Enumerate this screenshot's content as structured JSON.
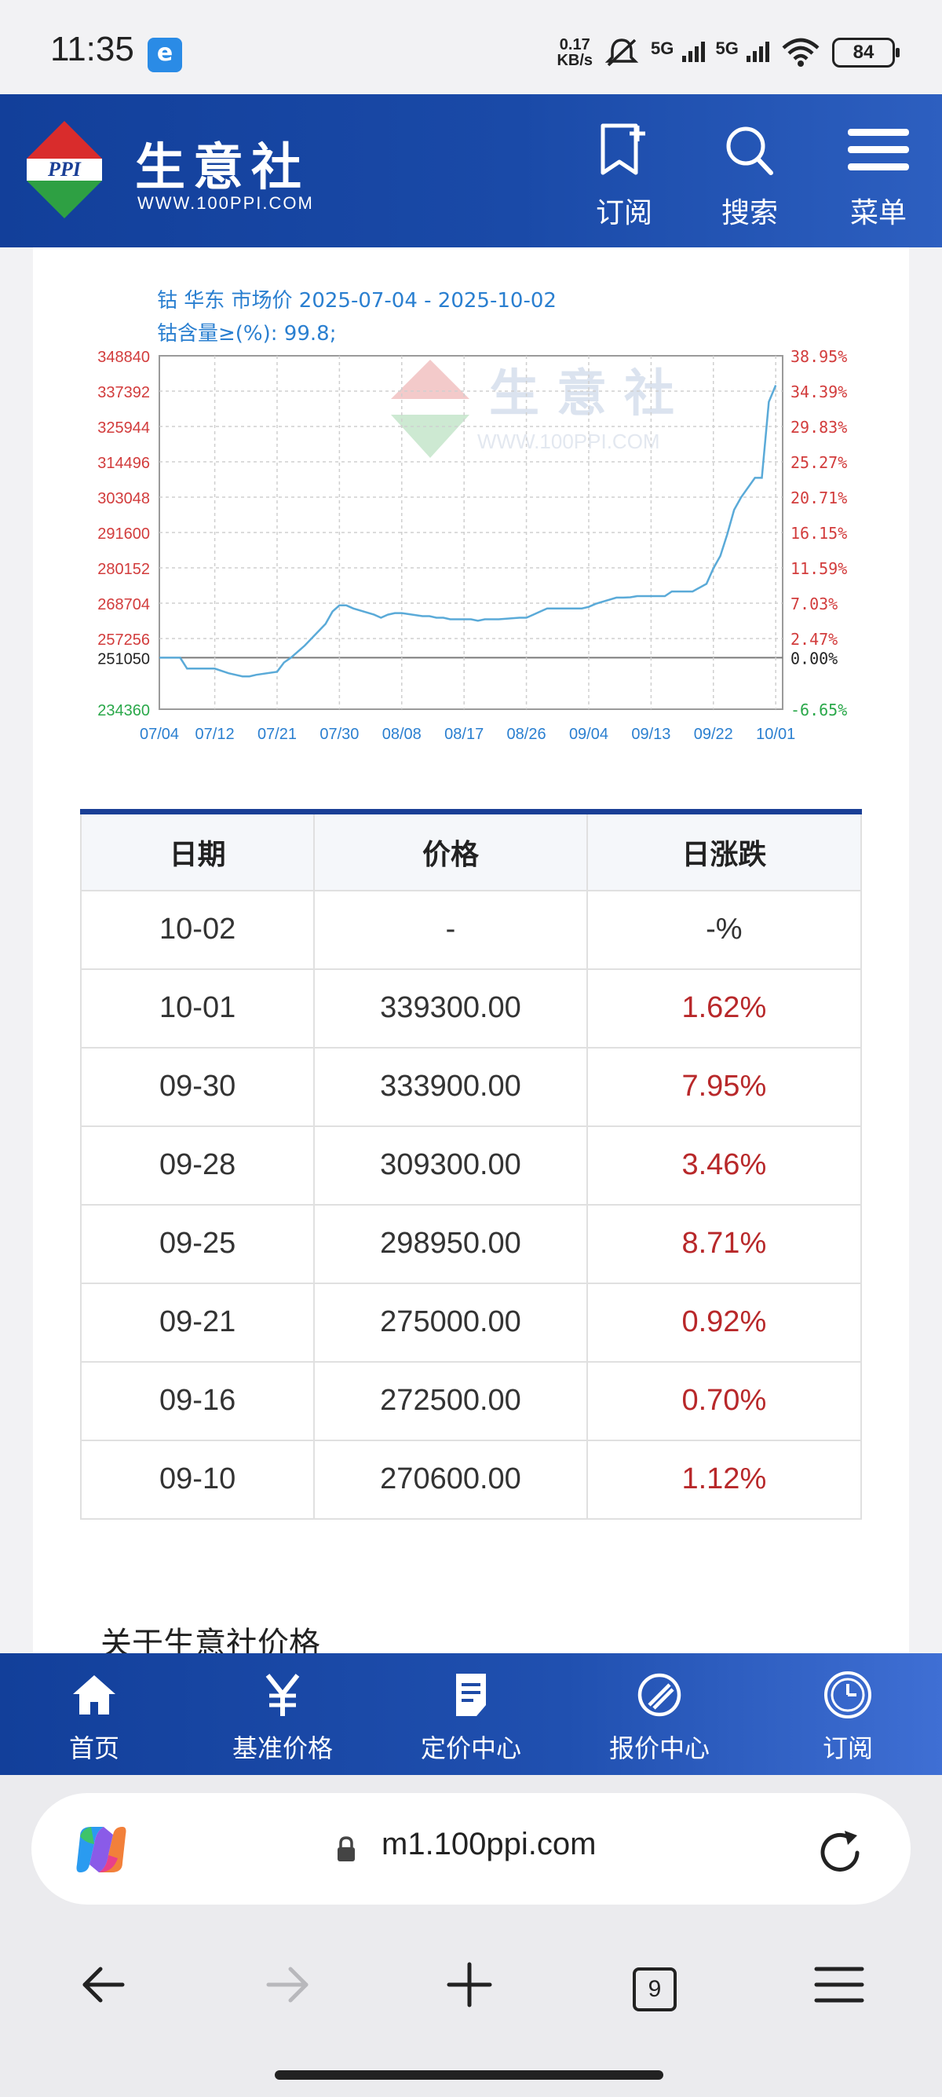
{
  "status_bar": {
    "time": "11:35",
    "app_badge": "e",
    "net_speed_top": "0.17",
    "net_speed_bottom": "KB/s",
    "sig1": "5G",
    "sig2": "5G",
    "battery": "84",
    "icons": [
      "mute-icon",
      "signal-icon",
      "wifi-icon",
      "battery-icon"
    ]
  },
  "header": {
    "logo_text": "PPI",
    "site_name": "生意社",
    "domain": "WWW.100PPI.COM",
    "subscribe": "订阅",
    "search": "搜索",
    "menu": "菜单"
  },
  "chart_data": {
    "type": "line",
    "title": "钴 华东 市场价 2025-07-04 - 2025-10-02",
    "subtitle": "钴含量≥(%): 99.8;",
    "y_ticks_left": [
      "348840",
      "337392",
      "325944",
      "314496",
      "303048",
      "291600",
      "280152",
      "268704",
      "257256",
      "251050",
      "234360"
    ],
    "y_ticks_right": [
      "38.95%",
      "34.39%",
      "29.83%",
      "25.27%",
      "20.71%",
      "16.15%",
      "11.59%",
      "7.03%",
      "2.47%",
      "0.00%",
      "-6.65%"
    ],
    "x_ticks": [
      "07/04",
      "07/12",
      "07/21",
      "07/30",
      "08/08",
      "08/17",
      "08/26",
      "09/04",
      "09/13",
      "09/22",
      "10/01"
    ],
    "ylim": [
      234360,
      348840
    ],
    "baseline": 251050,
    "watermark_text": "生意社",
    "watermark_domain": "WWW.100PPI.COM",
    "grid": true,
    "colors": {
      "line": "#5aaad8",
      "left_axis": "#d23c3c",
      "right_axis_pos": "#d23c3c",
      "right_axis_neg": "#2aa84a",
      "title": "#2a7fd0"
    },
    "series": [
      {
        "x": [
          "07-04",
          "07-07",
          "07-08",
          "07-10",
          "07-12",
          "07-14",
          "07-15",
          "07-16",
          "07-17",
          "07-18",
          "07-21",
          "07-22",
          "07-23",
          "07-24",
          "07-25",
          "07-28",
          "07-29",
          "07-30",
          "07-31",
          "08-01",
          "08-04",
          "08-05",
          "08-06",
          "08-07",
          "08-08",
          "08-11",
          "08-12",
          "08-13",
          "08-14",
          "08-15",
          "08-18",
          "08-19",
          "08-20",
          "08-21",
          "08-22",
          "08-25",
          "08-26",
          "08-27",
          "08-28",
          "08-29",
          "09-01",
          "09-02",
          "09-03",
          "09-04",
          "09-05",
          "09-08",
          "09-09",
          "09-10",
          "09-11",
          "09-12",
          "09-15",
          "09-16",
          "09-17",
          "09-18",
          "09-19",
          "09-21",
          "09-22",
          "09-23",
          "09-24",
          "09-25",
          "09-26",
          "09-28",
          "09-29",
          "09-30",
          "10-01"
        ],
        "values": [
          251050,
          251050,
          247500,
          247500,
          247500,
          246000,
          245500,
          245000,
          245000,
          245500,
          246500,
          249500,
          251050,
          253000,
          255000,
          262000,
          266000,
          268000,
          268000,
          267000,
          265000,
          264000,
          265000,
          265500,
          265500,
          264500,
          264500,
          264000,
          264000,
          263500,
          263500,
          263000,
          263500,
          263500,
          263500,
          264000,
          264000,
          265000,
          266000,
          267000,
          267000,
          267000,
          267000,
          267500,
          268500,
          270500,
          270500,
          270600,
          271000,
          271000,
          271000,
          272500,
          272500,
          272500,
          272500,
          275000,
          280000,
          284000,
          291000,
          298950,
          303000,
          309300,
          309300,
          333900,
          339300
        ]
      }
    ]
  },
  "table": {
    "headers": {
      "date": "日期",
      "price": "价格",
      "change": "日涨跌"
    },
    "rows": [
      {
        "date": "10-02",
        "price": "-",
        "change": "-%"
      },
      {
        "date": "10-01",
        "price": "339300.00",
        "change": "1.62%"
      },
      {
        "date": "09-30",
        "price": "333900.00",
        "change": "7.95%"
      },
      {
        "date": "09-28",
        "price": "309300.00",
        "change": "3.46%"
      },
      {
        "date": "09-25",
        "price": "298950.00",
        "change": "8.71%"
      },
      {
        "date": "09-21",
        "price": "275000.00",
        "change": "0.92%"
      },
      {
        "date": "09-16",
        "price": "272500.00",
        "change": "0.70%"
      },
      {
        "date": "09-10",
        "price": "270600.00",
        "change": "1.12%"
      }
    ]
  },
  "about": {
    "title": "关于生意社价格"
  },
  "bottom_nav": [
    {
      "label": "首页",
      "icon": "home-icon"
    },
    {
      "label": "基准价格",
      "icon": "yen-icon"
    },
    {
      "label": "定价中心",
      "icon": "document-icon"
    },
    {
      "label": "报价中心",
      "icon": "quote-icon"
    },
    {
      "label": "订阅",
      "icon": "clock-icon"
    }
  ],
  "browser": {
    "url": "m1.100ppi.com",
    "tab_count": "9"
  }
}
